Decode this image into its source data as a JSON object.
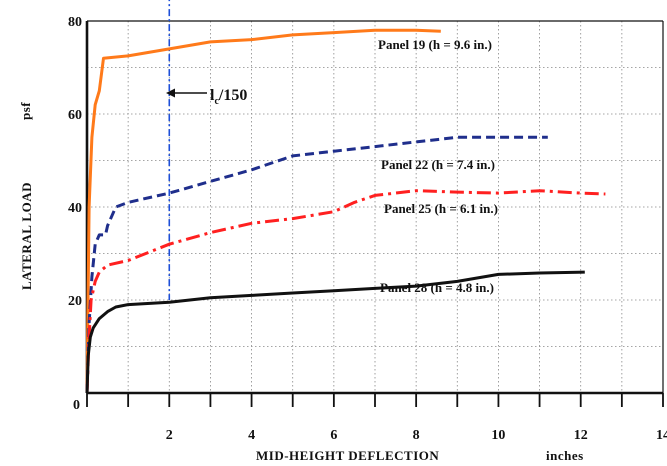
{
  "chart_data": {
    "type": "line",
    "title": "",
    "xlabel": "MID-HEIGHT DEFLECTION",
    "xunit": "inches",
    "ylabel": "LATERAL LOAD",
    "yunit": "psf",
    "xlim": [
      0,
      14
    ],
    "ylim": [
      0,
      80
    ],
    "xticks": [
      0,
      2,
      4,
      6,
      8,
      10,
      12,
      14
    ],
    "xtick_labels": [
      "",
      "2",
      "4",
      "6",
      "8",
      "10",
      "12",
      "14"
    ],
    "yticks": [
      0,
      20,
      40,
      60,
      80
    ],
    "ytick_labels": [
      "0",
      "20",
      "40",
      "60",
      "80"
    ],
    "grid": true,
    "legend": "none",
    "series": [
      {
        "name": "Panel 19 (h = 9.6 in.)",
        "color": "#ff7a1a",
        "dash": "solid",
        "x": [
          0,
          0.05,
          0.12,
          0.2,
          0.3,
          0.4,
          1,
          2,
          3,
          4,
          5,
          6,
          7,
          8,
          8.6
        ],
        "y": [
          0,
          40,
          55,
          62,
          65,
          72,
          72.5,
          74,
          75.5,
          76,
          77,
          77.5,
          78,
          78,
          77.8
        ]
      },
      {
        "name": "Panel 22 (h = 7.4 in.)",
        "color": "#1f2e8c",
        "dash": "dash",
        "x": [
          0,
          0.05,
          0.12,
          0.2,
          0.3,
          0.45,
          0.5,
          0.7,
          1,
          2,
          3,
          4,
          5,
          6,
          7,
          8,
          9,
          10,
          11.2
        ],
        "y": [
          0,
          15,
          25,
          32,
          34,
          34,
          36,
          40,
          41,
          43,
          45.5,
          48,
          51,
          52,
          53,
          54,
          55,
          55,
          55
        ]
      },
      {
        "name": "Panel 25 (h = 6.1 in.)",
        "color": "#ff2020",
        "dash": "dashdot",
        "x": [
          0,
          0.05,
          0.1,
          0.2,
          0.3,
          0.5,
          1,
          2,
          3,
          4,
          5,
          6,
          6.5,
          7,
          7.5,
          8,
          9,
          10,
          11,
          12,
          12.6
        ],
        "y": [
          0,
          12,
          20,
          24,
          26,
          27.5,
          28.5,
          32,
          34.5,
          36.5,
          37.5,
          39,
          41,
          42.5,
          43,
          43.5,
          43.2,
          43,
          43.5,
          43,
          42.8
        ]
      },
      {
        "name": "Panel 28 (h = 4.8 in.)",
        "color": "#111111",
        "dash": "solid",
        "x": [
          0,
          0.03,
          0.08,
          0.15,
          0.3,
          0.5,
          0.7,
          1,
          2,
          3,
          4,
          5,
          6,
          7,
          8,
          9,
          10,
          11,
          12.1
        ],
        "y": [
          0,
          8,
          12,
          14,
          16,
          17.5,
          18.5,
          19,
          19.5,
          20.5,
          21,
          21.5,
          22,
          22.5,
          23,
          24,
          25.5,
          25.8,
          26
        ]
      }
    ],
    "reference_line": {
      "label_main": "l",
      "label_sub": "c",
      "label_rest": "/150",
      "x": 2,
      "y_range": [
        20,
        89
      ],
      "color": "#1d4fd8",
      "dash": "dashdot"
    }
  }
}
